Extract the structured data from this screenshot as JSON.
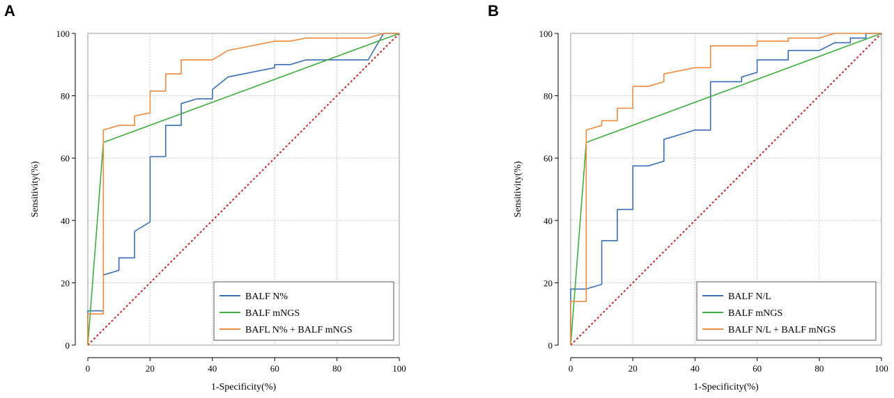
{
  "colors": {
    "blue": "#3a6db5",
    "green": "#3fae3f",
    "orange": "#f08a3c",
    "reference": "#c0282d",
    "grid": "#c8c8c8"
  },
  "chart_data": [
    {
      "panel": "A",
      "type": "line",
      "xlabel": "1-Specificity(%)",
      "ylabel": "Sensitivity(%)",
      "xlim": [
        0,
        100
      ],
      "ylim": [
        0,
        100
      ],
      "xticks": [
        0,
        20,
        40,
        60,
        80,
        100
      ],
      "yticks": [
        0,
        20,
        40,
        60,
        80,
        100
      ],
      "grid": true,
      "legend_position": "bottom-right",
      "series": [
        {
          "name": "BALF N%",
          "color": "#3a6db5",
          "points": [
            [
              0,
              0
            ],
            [
              0,
              11
            ],
            [
              5,
              11
            ],
            [
              5,
              22.5
            ],
            [
              10,
              24
            ],
            [
              10,
              28
            ],
            [
              15,
              28
            ],
            [
              15,
              36.5
            ],
            [
              20,
              39.5
            ],
            [
              20,
              60.5
            ],
            [
              25,
              60.5
            ],
            [
              25,
              70.5
            ],
            [
              30,
              70.5
            ],
            [
              30,
              77.5
            ],
            [
              35,
              79
            ],
            [
              40,
              79
            ],
            [
              40,
              82
            ],
            [
              45,
              86
            ],
            [
              60,
              89
            ],
            [
              60,
              90
            ],
            [
              65,
              90
            ],
            [
              70,
              91.5
            ],
            [
              90,
              91.5
            ],
            [
              95,
              100
            ],
            [
              100,
              100
            ]
          ]
        },
        {
          "name": "BALF mNGS",
          "color": "#3fae3f",
          "points": [
            [
              0,
              0
            ],
            [
              5,
              65
            ],
            [
              100,
              100
            ]
          ]
        },
        {
          "name": "BAFL N% + BALF mNGS",
          "color": "#f08a3c",
          "points": [
            [
              0,
              0
            ],
            [
              0,
              10
            ],
            [
              5,
              10
            ],
            [
              5,
              69
            ],
            [
              10,
              70.5
            ],
            [
              15,
              70.5
            ],
            [
              15,
              73.5
            ],
            [
              20,
              74.5
            ],
            [
              20,
              81.5
            ],
            [
              25,
              81.5
            ],
            [
              25,
              87
            ],
            [
              30,
              87
            ],
            [
              30,
              91.5
            ],
            [
              35,
              91.5
            ],
            [
              40,
              91.5
            ],
            [
              45,
              94.5
            ],
            [
              60,
              97.5
            ],
            [
              65,
              97.5
            ],
            [
              70,
              98.5
            ],
            [
              90,
              98.5
            ],
            [
              95,
              100
            ],
            [
              100,
              100
            ]
          ]
        },
        {
          "name": "Reference",
          "color": "#c0282d",
          "dashed": true,
          "points": [
            [
              0,
              0
            ],
            [
              100,
              100
            ]
          ]
        }
      ]
    },
    {
      "panel": "B",
      "type": "line",
      "xlabel": "1-Specificity(%)",
      "ylabel": "Sensitivity(%)",
      "xlim": [
        0,
        100
      ],
      "ylim": [
        0,
        100
      ],
      "xticks": [
        0,
        20,
        40,
        60,
        80,
        100
      ],
      "yticks": [
        0,
        20,
        40,
        60,
        80,
        100
      ],
      "grid": true,
      "legend_position": "bottom-right",
      "series": [
        {
          "name": "BALF N/L",
          "color": "#3a6db5",
          "points": [
            [
              0,
              0
            ],
            [
              0,
              18
            ],
            [
              5,
              18
            ],
            [
              10,
              19.5
            ],
            [
              10,
              33.5
            ],
            [
              15,
              33.5
            ],
            [
              15,
              43.5
            ],
            [
              20,
              43.5
            ],
            [
              20,
              57.5
            ],
            [
              25,
              57.5
            ],
            [
              30,
              59
            ],
            [
              30,
              66
            ],
            [
              35,
              67.5
            ],
            [
              40,
              69
            ],
            [
              45,
              69
            ],
            [
              45,
              84.5
            ],
            [
              55,
              84.5
            ],
            [
              55,
              86
            ],
            [
              60,
              87.5
            ],
            [
              60,
              91.5
            ],
            [
              70,
              91.5
            ],
            [
              70,
              94.5
            ],
            [
              80,
              94.5
            ],
            [
              85,
              97
            ],
            [
              90,
              97
            ],
            [
              90,
              98.5
            ],
            [
              95,
              98.5
            ],
            [
              95,
              100
            ],
            [
              100,
              100
            ]
          ]
        },
        {
          "name": "BALF mNGS",
          "color": "#3fae3f",
          "points": [
            [
              0,
              0
            ],
            [
              5,
              65
            ],
            [
              100,
              100
            ]
          ]
        },
        {
          "name": "BALF N/L + BALF mNGS",
          "color": "#f08a3c",
          "points": [
            [
              0,
              0
            ],
            [
              0,
              14
            ],
            [
              5,
              14
            ],
            [
              5,
              69
            ],
            [
              10,
              70.5
            ],
            [
              10,
              72
            ],
            [
              15,
              72
            ],
            [
              15,
              76
            ],
            [
              20,
              76
            ],
            [
              20,
              83
            ],
            [
              25,
              83
            ],
            [
              30,
              84.5
            ],
            [
              30,
              87
            ],
            [
              35,
              88
            ],
            [
              40,
              89
            ],
            [
              45,
              89
            ],
            [
              45,
              96
            ],
            [
              60,
              96
            ],
            [
              60,
              97.5
            ],
            [
              70,
              97.5
            ],
            [
              70,
              98.5
            ],
            [
              80,
              98.5
            ],
            [
              85,
              100
            ],
            [
              100,
              100
            ]
          ]
        },
        {
          "name": "Reference",
          "color": "#c0282d",
          "dashed": true,
          "points": [
            [
              0,
              0
            ],
            [
              100,
              100
            ]
          ]
        }
      ]
    }
  ]
}
